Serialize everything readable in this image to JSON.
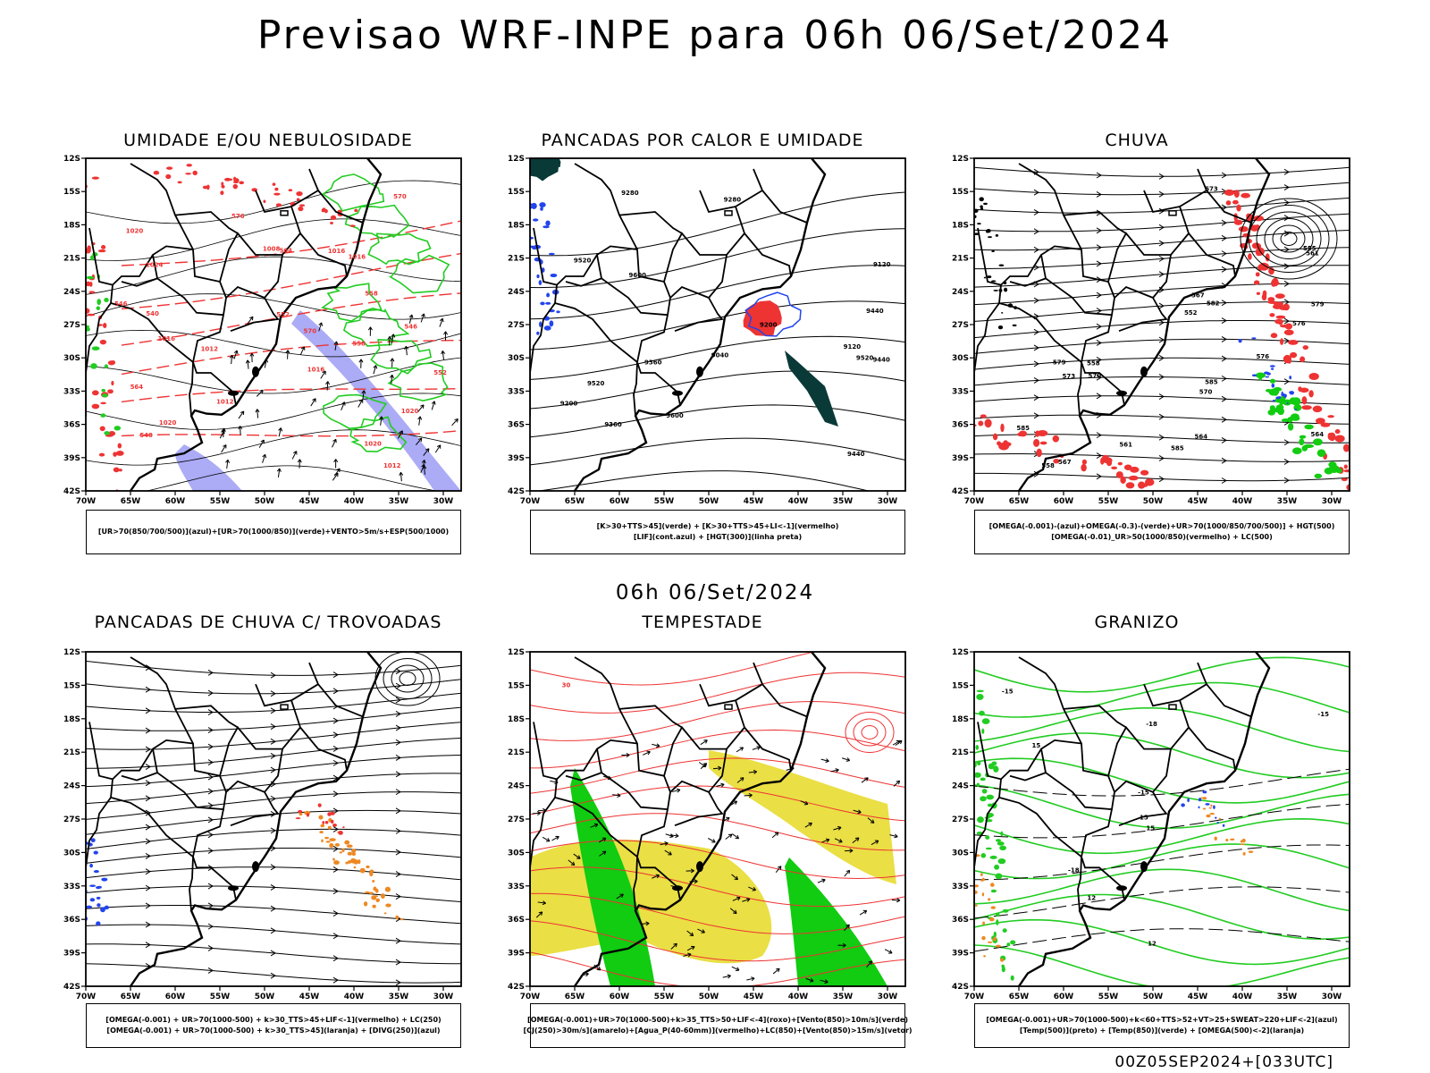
{
  "title": "Previsao WRF-INPE  para 06h 06/Set/2024",
  "mid_title": "06h 06/Set/2024",
  "footer": "00Z05SEP2024+[033UTC]",
  "axes": {
    "lat_ticks": [
      "12S",
      "15S",
      "18S",
      "21S",
      "24S",
      "27S",
      "30S",
      "33S",
      "36S",
      "39S",
      "42S"
    ],
    "lon_ticks": [
      "70W",
      "65W",
      "60W",
      "55W",
      "50W",
      "45W",
      "40W",
      "35W",
      "30W"
    ]
  },
  "colors": {
    "contour_black": "#000000",
    "humidity_green": "#22cc22",
    "geopotential_red": "#ee3333",
    "mid_humidity_blue": "#6666ee",
    "blue": "#2244ee",
    "red_fill": "#ee3333",
    "green_fill": "#11cc11",
    "orange": "#ee8822",
    "yellow_fill": "#e8dc30",
    "dark_teal": "#0a3a38"
  },
  "panels": [
    {
      "title": "UMIDADE E/OU NEBULOSIDADE",
      "legend": [
        "[UR>70(850/700/500)](azul)+[UR>70(1000/850)](verde)+VENTO>5m/s+ESP(500/1000)"
      ],
      "contour_labels": [
        "1012",
        "1016",
        "1016",
        "1020",
        "1020",
        "1024",
        "1020",
        "1012",
        "1016",
        "1008",
        "1016",
        "1020",
        "1012",
        "576",
        "570",
        "564",
        "558",
        "552",
        "546",
        "540",
        "570",
        "564",
        "558",
        "552",
        "546",
        "540"
      ]
    },
    {
      "title": "PANCADAS POR CALOR E UMIDADE",
      "legend": [
        "[K>30+TTS>45](verde)  +  [K>30+TTS>45+LI<-1](vermelho)",
        "[LIF](cont.azul)  +  [HGT(300)](linha preta)"
      ],
      "contour_labels": [
        "9600",
        "9520",
        "9520",
        "9600",
        "9520",
        "9440",
        "9440",
        "9360",
        "9360",
        "9280",
        "9280",
        "9200",
        "9200",
        "9120",
        "9120",
        "9040",
        "9440"
      ]
    },
    {
      "title": "CHUVA",
      "legend": [
        "[OMEGA(-0.001)-(azul)+OMEGA(-0.3)-(verde)+UR>70(1000/850/700/500)]  +  HGT(500)",
        "[OMEGA(-0.01)_UR>50(1000/850)(vermelho)  +  LC(500)"
      ],
      "contour_labels": [
        "585",
        "585",
        "585",
        "582",
        "579",
        "576",
        "573",
        "570",
        "567",
        "564",
        "561",
        "558",
        "555",
        "552",
        "579",
        "576",
        "573",
        "570",
        "567",
        "564",
        "561",
        "558"
      ]
    },
    {
      "title": "PANCADAS DE CHUVA C/ TROVOADAS",
      "legend": [
        "[OMEGA(-0.001)  +  UR>70(1000-500)  +  k>30_TTS>45+LIF<-1](vermelho)  +  LC(250)",
        "[OMEGA(-0.001)  +  UR>70(1000-500)  +  k>30_TTS>45](laranja)  +  [DIVG(250)](azul)"
      ],
      "contour_labels": []
    },
    {
      "title": "TEMPESTADE",
      "legend": [
        "[OMEGA(-0.001)+UR>70(1000-500)+k>35_TTS>50+LIF<-4](roxo)+[Vento(850)>10m/s](verde)",
        "[CJ(250)>30m/s](amarelo)+[Agua_P(40-60mm)](vermelho)+LC(850)+[Vento(850)>15m/s](vetor)"
      ],
      "contour_labels": [
        "30"
      ]
    },
    {
      "title": "GRANIZO",
      "legend": [
        "[OMEGA(-0.001)+UR>70(1000-500)+k<60+TTS>52+VT>25+SWEAT>220+LIF<-2](azul)",
        "[Temp(500)](preto)  +  [Temp(850)](verde)  +  [OMEGA(500)<-2](laranja)"
      ],
      "contour_labels": [
        "-15",
        "-15",
        "-18",
        "-18",
        "-15",
        "12",
        "15",
        "12",
        "15",
        "15"
      ]
    }
  ]
}
